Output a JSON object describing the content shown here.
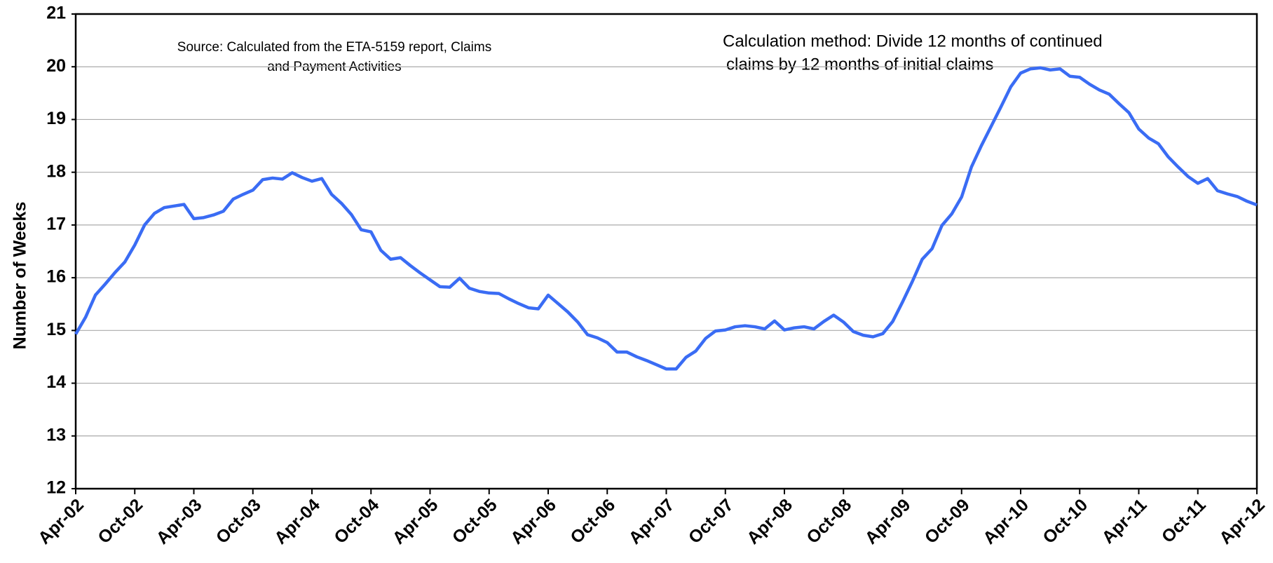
{
  "chart_data": {
    "type": "line",
    "ylabel": "Number of Weeks",
    "annotations": [
      [
        "Source:  Calculated from the ETA-5159 report, Claims",
        "and Payment Activities"
      ],
      [
        "Calculation method:  Divide 12 months of  continued",
        "claims by 12 months of initial claims"
      ]
    ],
    "categories": [
      "Apr-02",
      null,
      null,
      null,
      null,
      null,
      "Oct-02",
      null,
      null,
      null,
      null,
      null,
      "Apr-03",
      null,
      null,
      null,
      null,
      null,
      "Oct-03",
      null,
      null,
      null,
      null,
      null,
      "Apr-04",
      null,
      null,
      null,
      null,
      null,
      "Oct-04",
      null,
      null,
      null,
      null,
      null,
      "Apr-05",
      null,
      null,
      null,
      null,
      null,
      "Oct-05",
      null,
      null,
      null,
      null,
      null,
      "Apr-06",
      null,
      null,
      null,
      null,
      null,
      "Oct-06",
      null,
      null,
      null,
      null,
      null,
      "Apr-07",
      null,
      null,
      null,
      null,
      null,
      "Oct-07",
      null,
      null,
      null,
      null,
      null,
      "Apr-08",
      null,
      null,
      null,
      null,
      null,
      "Oct-08",
      null,
      null,
      null,
      null,
      null,
      "Apr-09",
      null,
      null,
      null,
      null,
      null,
      "Oct-09",
      null,
      null,
      null,
      null,
      null,
      "Apr-10",
      null,
      null,
      null,
      null,
      null,
      "Oct-10",
      null,
      null,
      null,
      null,
      null,
      "Apr-11",
      null,
      null,
      null,
      null,
      null,
      "Oct-11",
      null,
      null,
      null,
      null,
      null,
      "Apr-12"
    ],
    "values": [
      14.93,
      15.25,
      15.67,
      15.88,
      16.1,
      16.3,
      16.62,
      17.0,
      17.22,
      17.33,
      17.36,
      17.39,
      17.12,
      17.14,
      17.19,
      17.26,
      17.49,
      17.58,
      17.66,
      17.86,
      17.89,
      17.87,
      17.99,
      17.9,
      17.83,
      17.88,
      17.58,
      17.41,
      17.2,
      16.91,
      16.87,
      16.52,
      16.35,
      16.38,
      16.23,
      16.09,
      15.96,
      15.83,
      15.82,
      15.99,
      15.8,
      15.74,
      15.71,
      15.7,
      15.6,
      15.51,
      15.43,
      15.41,
      15.67,
      15.51,
      15.35,
      15.16,
      14.92,
      14.86,
      14.77,
      14.59,
      14.59,
      14.5,
      14.43,
      14.35,
      14.27,
      14.27,
      14.49,
      14.61,
      14.85,
      14.99,
      15.01,
      15.07,
      15.09,
      15.07,
      15.03,
      15.18,
      15.01,
      15.05,
      15.07,
      15.03,
      15.17,
      15.29,
      15.16,
      14.98,
      14.91,
      14.88,
      14.94,
      15.17,
      15.54,
      15.93,
      16.35,
      16.55,
      16.99,
      17.21,
      17.53,
      18.1,
      18.5,
      18.87,
      19.24,
      19.62,
      19.88,
      19.96,
      19.98,
      19.94,
      19.96,
      19.82,
      19.8,
      19.67,
      19.56,
      19.48,
      19.3,
      19.13,
      18.82,
      18.65,
      18.54,
      18.29,
      18.1,
      17.92,
      17.79,
      17.88,
      17.65,
      17.59,
      17.54,
      17.45,
      17.38
    ],
    "color": "#3a6cf4",
    "ylim": [
      12,
      21
    ],
    "yticks": [
      12,
      13,
      14,
      15,
      16,
      17,
      18,
      19,
      20,
      21
    ],
    "grid": true
  }
}
